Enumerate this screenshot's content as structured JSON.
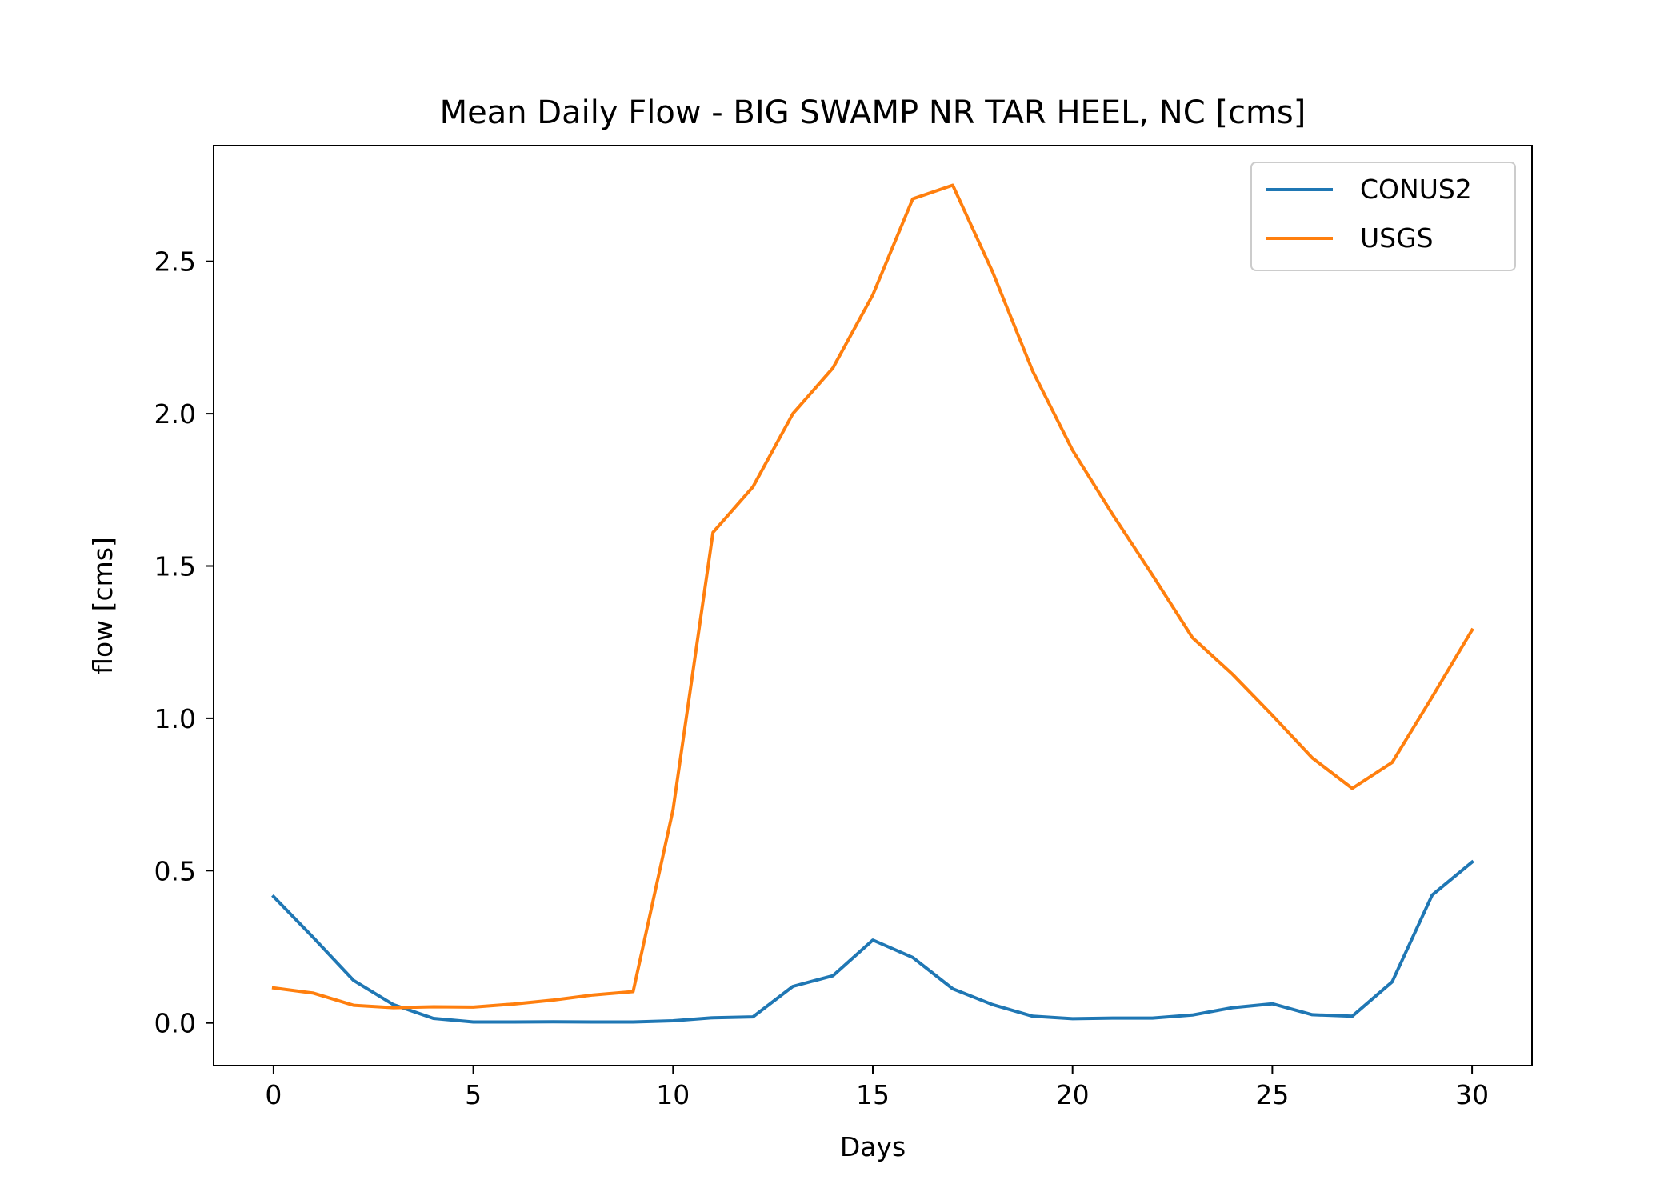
{
  "chart_data": {
    "type": "line",
    "title": "Mean Daily Flow - BIG SWAMP NR TAR HEEL, NC [cms]",
    "xlabel": "Days",
    "ylabel": "flow [cms]",
    "xlim": [
      -1.5,
      31.5
    ],
    "ylim": [
      -0.14,
      2.88
    ],
    "xticks": [
      0,
      5,
      10,
      15,
      20,
      25,
      30
    ],
    "xtick_labels": [
      "0",
      "5",
      "10",
      "15",
      "20",
      "25",
      "30"
    ],
    "yticks": [
      0.0,
      0.5,
      1.0,
      1.5,
      2.0,
      2.5
    ],
    "ytick_labels": [
      "0.0",
      "0.5",
      "1.0",
      "1.5",
      "2.0",
      "2.5"
    ],
    "grid": false,
    "legend_position": "top-right",
    "x": [
      0,
      1,
      2,
      3,
      4,
      5,
      6,
      7,
      8,
      9,
      10,
      11,
      12,
      13,
      14,
      15,
      16,
      17,
      18,
      19,
      20,
      21,
      22,
      23,
      24,
      25,
      26,
      27,
      28,
      29,
      30
    ],
    "series": [
      {
        "name": "CONUS2",
        "color": "#1f77b4",
        "values": [
          0.415,
          0.28,
          0.14,
          0.06,
          0.015,
          0.003,
          0.003,
          0.004,
          0.003,
          0.003,
          0.007,
          0.017,
          0.02,
          0.12,
          0.155,
          0.272,
          0.215,
          0.112,
          0.06,
          0.022,
          0.014,
          0.016,
          0.016,
          0.026,
          0.05,
          0.063,
          0.027,
          0.022,
          0.135,
          0.42,
          0.528
        ]
      },
      {
        "name": "USGS",
        "color": "#ff7f0e",
        "values": [
          0.115,
          0.098,
          0.058,
          0.05,
          0.053,
          0.052,
          0.062,
          0.075,
          0.092,
          0.103,
          0.7,
          1.61,
          1.76,
          2.0,
          2.15,
          2.39,
          2.705,
          2.75,
          2.465,
          2.14,
          1.88,
          1.67,
          1.47,
          1.265,
          1.145,
          1.01,
          0.87,
          0.77,
          0.855,
          1.07,
          1.29
        ]
      }
    ]
  }
}
